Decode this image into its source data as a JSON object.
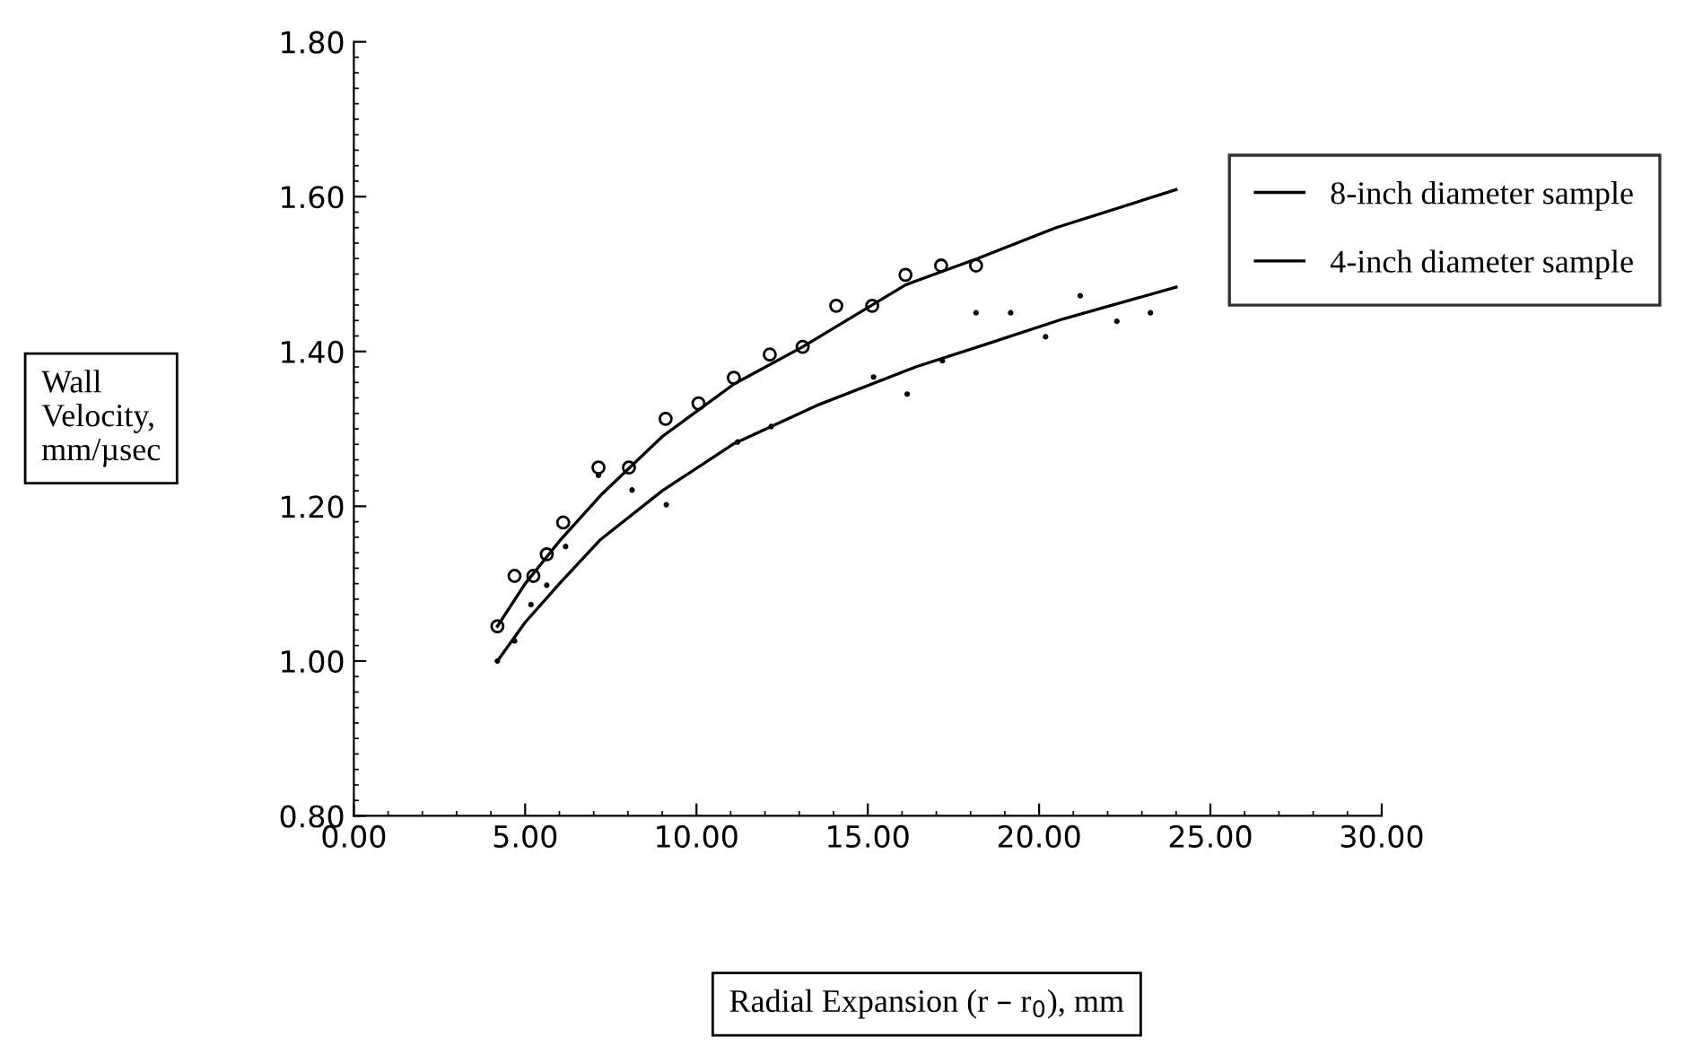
{
  "chart_data": {
    "type": "scatter",
    "xlabel": "Radial Expansion (r – r$_{0}$), mm",
    "ylabel": "Wall\nVelocity,\nmm/µsec",
    "xlim": [
      0,
      30
    ],
    "ylim": [
      0.8,
      1.8
    ],
    "xticks": [
      {
        "value": 0,
        "label": "0.00"
      },
      {
        "value": 5,
        "label": "5.00"
      },
      {
        "value": 10,
        "label": "10.00"
      },
      {
        "value": 15,
        "label": "15.00"
      },
      {
        "value": 20,
        "label": "20.00"
      },
      {
        "value": 25,
        "label": "25.00"
      },
      {
        "value": 30,
        "label": "30.00"
      }
    ],
    "yticks": [
      {
        "value": 0.8,
        "label": "0.80"
      },
      {
        "value": 1.0,
        "label": "1.00"
      },
      {
        "value": 1.2,
        "label": "1.20"
      },
      {
        "value": 1.4,
        "label": "1.40"
      },
      {
        "value": 1.6,
        "label": "1.60"
      },
      {
        "value": 1.8,
        "label": "1.80"
      }
    ],
    "grid": false,
    "legend": "right",
    "series": [
      {
        "marker": "circle",
        "color": "#000000",
        "x": [
          4.19,
          4.69,
          5.24,
          5.63,
          6.11,
          7.14,
          8.03,
          9.1,
          10.06,
          11.09,
          12.14,
          13.1,
          14.08,
          15.13,
          16.1,
          17.14,
          18.16
        ],
        "values": [
          1.045,
          1.11,
          1.11,
          1.138,
          1.179,
          1.25,
          1.25,
          1.313,
          1.333,
          1.366,
          1.396,
          1.406,
          1.459,
          1.459,
          1.499,
          1.511,
          1.511
        ]
      },
      {
        "type": "line",
        "name": "8-inch diameter sample",
        "color": "#000000",
        "line_style": "solid",
        "x": [
          4.19,
          5,
          6,
          7.2,
          9,
          11.1,
          13.1,
          16.1,
          18.2,
          20.5,
          24
        ],
        "values": [
          1.045,
          1.1,
          1.155,
          1.214,
          1.29,
          1.358,
          1.406,
          1.486,
          1.52,
          1.56,
          1.609
        ]
      },
      {
        "marker": "dot",
        "color": "#000000",
        "x": [
          4.19,
          4.69,
          5.17,
          5.63,
          6.18,
          7.14,
          8.12,
          9.12,
          11.2,
          12.18,
          15.17,
          16.15,
          17.18,
          18.16,
          19.17,
          20.19,
          21.2,
          22.27,
          23.25
        ],
        "values": [
          1.0,
          1.026,
          1.073,
          1.098,
          1.148,
          1.24,
          1.221,
          1.202,
          1.283,
          1.303,
          1.367,
          1.345,
          1.388,
          1.45,
          1.45,
          1.419,
          1.472,
          1.439,
          1.45
        ]
      },
      {
        "type": "line",
        "name": "4-inch diameter sample",
        "color": "#000000",
        "line_style": "solid",
        "x": [
          4.19,
          5,
          6,
          7.2,
          9,
          11.1,
          13.5,
          16.4,
          18.5,
          20.7,
          24
        ],
        "values": [
          1.0,
          1.05,
          1.1,
          1.157,
          1.22,
          1.281,
          1.33,
          1.38,
          1.41,
          1.442,
          1.483
        ]
      }
    ]
  }
}
